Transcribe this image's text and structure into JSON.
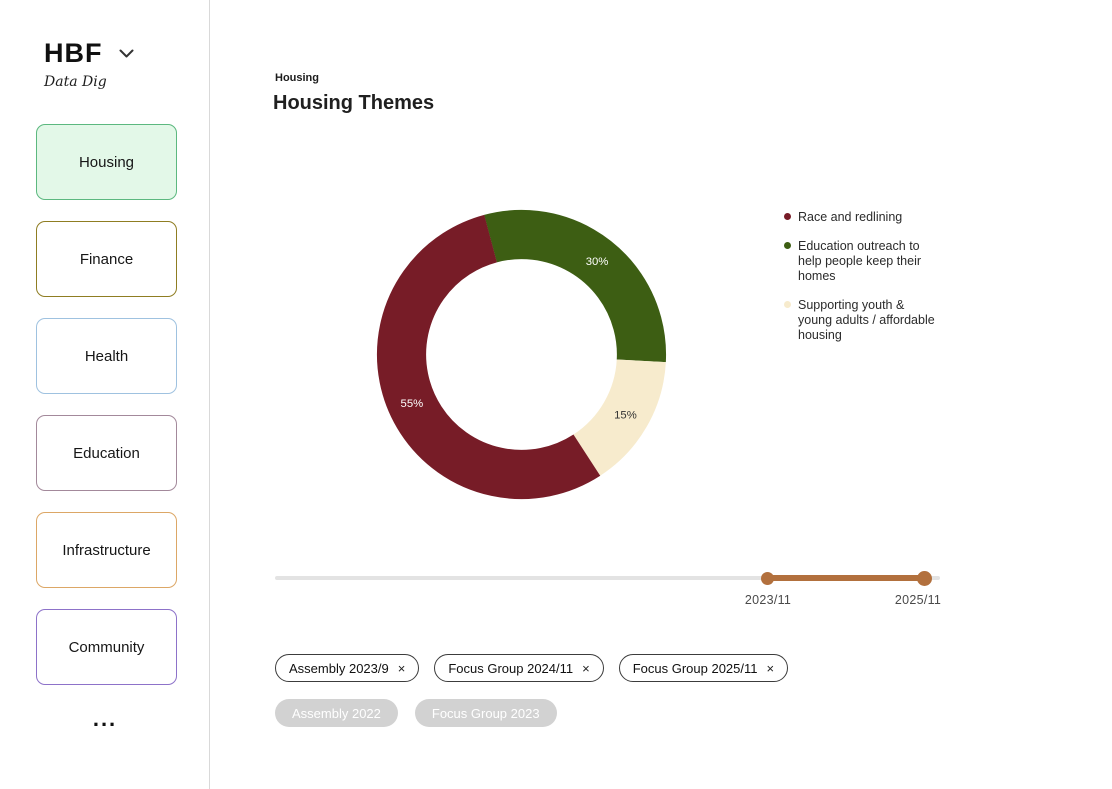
{
  "sidebar": {
    "logo": "HBF",
    "logo_sub": "Data Dig",
    "more": "...",
    "items": [
      {
        "label": "Housing",
        "active": true,
        "border_color": "#5cb87f",
        "bg_color": "#e3f8e8"
      },
      {
        "label": "Finance",
        "active": false,
        "border_color": "#8f7d22",
        "bg_color": "#ffffff"
      },
      {
        "label": "Health",
        "active": false,
        "border_color": "#9fc2e0",
        "bg_color": "#ffffff"
      },
      {
        "label": "Education",
        "active": false,
        "border_color": "#a3899b",
        "bg_color": "#ffffff"
      },
      {
        "label": "Infrastructure",
        "active": false,
        "border_color": "#dca766",
        "bg_color": "#ffffff"
      },
      {
        "label": "Community",
        "active": false,
        "border_color": "#8d72c9",
        "bg_color": "#ffffff"
      }
    ]
  },
  "header": {
    "breadcrumb": "Housing",
    "title": "Housing Themes"
  },
  "chart_data": {
    "type": "pie",
    "donut": true,
    "title": "Housing Themes",
    "start_angle_deg": -15,
    "legend_position": "right",
    "segments": [
      {
        "label": "Education outreach to help people keep their homes",
        "value": 30,
        "display": "30%",
        "color": "#3d5e13",
        "label_color": "#ffffff"
      },
      {
        "label": "Supporting youth & young adults / affordable housing",
        "value": 15,
        "display": "15%",
        "color": "#f7ebcd",
        "label_color": "#333333"
      },
      {
        "label": "Race and redlining",
        "value": 55,
        "display": "55%",
        "color": "#771c27",
        "label_color": "#ffffff"
      }
    ],
    "legend": [
      {
        "label": "Race and redlining",
        "color": "#771c27"
      },
      {
        "label": "Education outreach to help people keep their homes",
        "color": "#3d5e13"
      },
      {
        "label": "Supporting youth & young adults / affordable housing",
        "color": "#f7ebcd"
      }
    ]
  },
  "timeline": {
    "start_label": "2023/11",
    "end_label": "2025/11",
    "track_color": "#e3e3e3",
    "range_color": "#b2703d"
  },
  "filters": {
    "active": [
      "Assembly 2023/9",
      "Focus Group 2024/11",
      "Focus Group 2025/11"
    ],
    "inactive": [
      "Assembly 2022",
      "Focus Group 2023"
    ],
    "remove_glyph": "×"
  }
}
